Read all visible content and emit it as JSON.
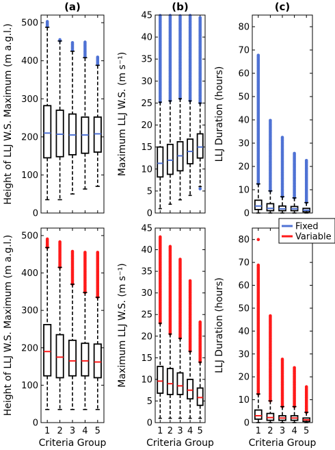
{
  "colors": {
    "fixed": "#4f72d4",
    "variable": "#ff1a1a"
  },
  "legend": {
    "placement": "top-right of bottom-right panel",
    "entries": [
      "Fixed",
      "Variable"
    ]
  },
  "chart_data": [
    {
      "id": "top-height",
      "type": "boxplot",
      "title": "(a)",
      "variant": "Fixed",
      "ylabel": "Height of LLJ W.S. Maximum (m a.g.l.)",
      "xlabel": "",
      "ylim": [
        0,
        520
      ],
      "yticks": [
        0,
        100,
        200,
        300,
        400,
        500
      ],
      "categories": [
        "1",
        "2",
        "3",
        "4",
        "5"
      ],
      "show_xticklabels": false,
      "boxes": [
        {
          "wlo": 35,
          "q1": 145,
          "med": 210,
          "q3": 282,
          "whi": 488,
          "out_lo": 490,
          "out_hi": 505
        },
        {
          "wlo": 35,
          "q1": 148,
          "med": 207,
          "q3": 270,
          "whi": 452,
          "out_lo": 452,
          "out_hi": 458
        },
        {
          "wlo": 50,
          "q1": 153,
          "med": 205,
          "q3": 260,
          "whi": 425,
          "out_lo": 428,
          "out_hi": 450
        },
        {
          "wlo": 63,
          "q1": 157,
          "med": 205,
          "q3": 252,
          "whi": 408,
          "out_lo": 410,
          "out_hi": 452
        },
        {
          "wlo": 70,
          "q1": 160,
          "med": 208,
          "q3": 252,
          "whi": 388,
          "out_lo": 390,
          "out_hi": 410
        }
      ]
    },
    {
      "id": "top-speed",
      "type": "boxplot",
      "title": "(b)",
      "variant": "Fixed",
      "ylabel": "Maximum LLJ W.S. (m s⁻¹)",
      "xlabel": "",
      "ylim": [
        0,
        45
      ],
      "yticks": [
        0,
        5,
        10,
        15,
        20,
        25,
        30,
        35,
        40,
        45
      ],
      "categories": [
        "1",
        "2",
        "3",
        "4",
        "5"
      ],
      "show_xticklabels": false,
      "boxes": [
        {
          "wlo": 1,
          "q1": 8.2,
          "med": 11.3,
          "q3": 15.0,
          "whi": 25.2,
          "out_lo": 25.2,
          "out_hi": 45
        },
        {
          "wlo": 2,
          "q1": 8.8,
          "med": 12.0,
          "q3": 15.6,
          "whi": 25.5,
          "out_lo": 25.5,
          "out_hi": 45
        },
        {
          "wlo": 3,
          "q1": 9.6,
          "med": 13.0,
          "q3": 16.2,
          "whi": 26.0,
          "out_lo": 26.0,
          "out_hi": 45
        },
        {
          "wlo": 4,
          "q1": 11.2,
          "med": 14.0,
          "q3": 16.8,
          "whi": 25.5,
          "out_lo": 25.5,
          "out_hi": 45
        },
        {
          "wlo": 6,
          "q1": 12.5,
          "med": 15.0,
          "q3": 18.0,
          "whi": 25.0,
          "out_lo": 25.0,
          "out_hi": 44.5,
          "low_outliers": [
            5.5
          ]
        }
      ]
    },
    {
      "id": "top-duration",
      "type": "boxplot",
      "title": "(c)",
      "variant": "Fixed",
      "ylabel": "LLJ Duration (hours)",
      "xlabel": "",
      "ylim": [
        0,
        85
      ],
      "yticks": [
        0,
        10,
        20,
        30,
        40,
        50,
        60,
        70,
        80
      ],
      "categories": [
        "1",
        "2",
        "3",
        "4",
        "5"
      ],
      "show_xticklabels": false,
      "boxes": [
        {
          "wlo": 0,
          "q1": 1.5,
          "med": 3.0,
          "q3": 5.5,
          "whi": 12.5,
          "out_lo": 12.5,
          "out_hi": 68
        },
        {
          "wlo": 0,
          "q1": 1.0,
          "med": 2.0,
          "q3": 4.0,
          "whi": 9.5,
          "out_lo": 9.5,
          "out_hi": 40
        },
        {
          "wlo": 0,
          "q1": 1.0,
          "med": 1.8,
          "q3": 3.0,
          "whi": 7.0,
          "out_lo": 7.0,
          "out_hi": 33
        },
        {
          "wlo": 0,
          "q1": 1.0,
          "med": 1.8,
          "q3": 2.8,
          "whi": 6.5,
          "out_lo": 6.5,
          "out_hi": 26
        },
        {
          "wlo": 0,
          "q1": 0.5,
          "med": 1.2,
          "q3": 2.0,
          "whi": 4.5,
          "out_lo": 4.5,
          "out_hi": 23
        }
      ]
    },
    {
      "id": "bottom-height",
      "type": "boxplot",
      "title": "",
      "variant": "Variable",
      "ylabel": "Height of LLJ W.S. Maximum (m a.g.l.)",
      "xlabel": "Criteria Group",
      "ylim": [
        0,
        520
      ],
      "yticks": [
        0,
        100,
        200,
        300,
        400,
        500
      ],
      "categories": [
        "1",
        "2",
        "3",
        "4",
        "5"
      ],
      "show_xticklabels": true,
      "boxes": [
        {
          "wlo": 35,
          "q1": 125,
          "med": 190,
          "q3": 262,
          "whi": 468,
          "out_lo": 468,
          "out_hi": 492
        },
        {
          "wlo": 35,
          "q1": 120,
          "med": 175,
          "q3": 235,
          "whi": 415,
          "out_lo": 415,
          "out_hi": 485
        },
        {
          "wlo": 35,
          "q1": 125,
          "med": 165,
          "q3": 220,
          "whi": 370,
          "out_lo": 370,
          "out_hi": 460
        },
        {
          "wlo": 35,
          "q1": 125,
          "med": 165,
          "q3": 212,
          "whi": 348,
          "out_lo": 348,
          "out_hi": 458
        },
        {
          "wlo": 35,
          "q1": 120,
          "med": 162,
          "q3": 210,
          "whi": 335,
          "out_lo": 335,
          "out_hi": 458
        }
      ]
    },
    {
      "id": "bottom-speed",
      "type": "boxplot",
      "title": "",
      "variant": "Variable",
      "ylabel": "Maximum LLJ W.S. (m s⁻¹)",
      "xlabel": "Criteria Group",
      "ylim": [
        0,
        45
      ],
      "yticks": [
        0,
        5,
        10,
        15,
        20,
        25,
        30,
        35,
        40,
        45
      ],
      "categories": [
        "1",
        "2",
        "3",
        "4",
        "5"
      ],
      "show_xticklabels": true,
      "boxes": [
        {
          "wlo": 1,
          "q1": 6.8,
          "med": 9.6,
          "q3": 13.0,
          "whi": 23.0,
          "out_lo": 23.0,
          "out_hi": 43
        },
        {
          "wlo": 1,
          "q1": 6.5,
          "med": 9.0,
          "q3": 12.5,
          "whi": 20.5,
          "out_lo": 20.5,
          "out_hi": 41
        },
        {
          "wlo": 1,
          "q1": 6.5,
          "med": 8.5,
          "q3": 11.5,
          "whi": 19.5,
          "out_lo": 19.5,
          "out_hi": 38
        },
        {
          "wlo": 1,
          "q1": 5.5,
          "med": 7.5,
          "q3": 10.0,
          "whi": 16.5,
          "out_lo": 16.5,
          "out_hi": 33
        },
        {
          "wlo": 1,
          "q1": 4.0,
          "med": 5.8,
          "q3": 8.0,
          "whi": 14.0,
          "out_lo": 14.0,
          "out_hi": 23.5
        }
      ]
    },
    {
      "id": "bottom-duration",
      "type": "boxplot",
      "title": "",
      "variant": "Variable",
      "ylabel": "LLJ Duration (hours)",
      "xlabel": "Criteria Group",
      "ylim": [
        0,
        85
      ],
      "yticks": [
        0,
        10,
        20,
        30,
        40,
        50,
        60,
        70,
        80
      ],
      "categories": [
        "1",
        "2",
        "3",
        "4",
        "5"
      ],
      "show_xticklabels": true,
      "boxes": [
        {
          "wlo": 0,
          "q1": 1.5,
          "med": 3.0,
          "q3": 5.5,
          "whi": 12.5,
          "out_lo": 12.5,
          "out_hi": 69,
          "extreme": 80
        },
        {
          "wlo": 0,
          "q1": 1.0,
          "med": 2.2,
          "q3": 4.0,
          "whi": 9.5,
          "out_lo": 9.5,
          "out_hi": 47
        },
        {
          "wlo": 0,
          "q1": 1.0,
          "med": 2.0,
          "q3": 3.0,
          "whi": 7.0,
          "out_lo": 7.0,
          "out_hi": 28
        },
        {
          "wlo": 0,
          "q1": 1.0,
          "med": 2.0,
          "q3": 3.0,
          "whi": 7.0,
          "out_lo": 7.0,
          "out_hi": 24
        },
        {
          "wlo": 0,
          "q1": 0.5,
          "med": 1.2,
          "q3": 2.0,
          "whi": 4.5,
          "out_lo": 4.5,
          "out_hi": 16
        }
      ]
    }
  ]
}
